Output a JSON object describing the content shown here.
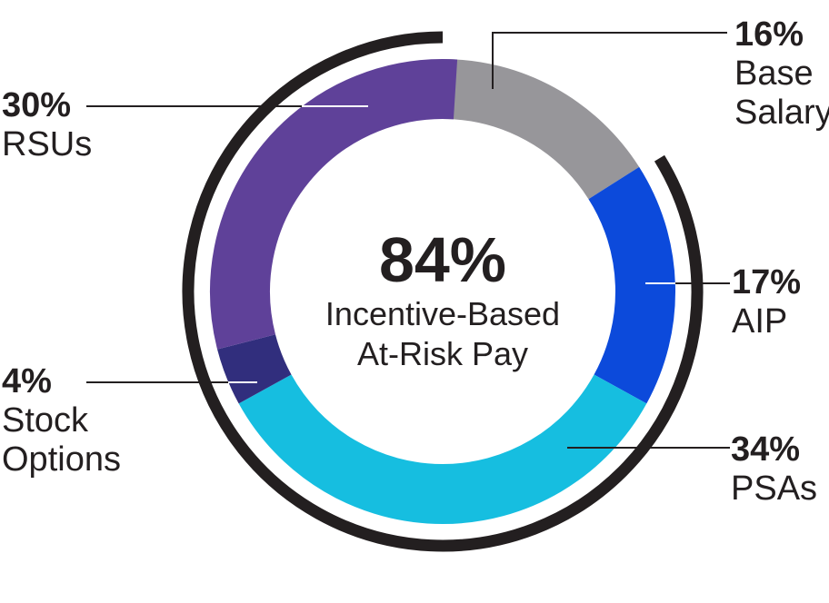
{
  "chart_data": {
    "type": "pie",
    "subtype": "donut",
    "title": "",
    "direction": "clockwise",
    "start_angle_deg": 0,
    "segments": [
      {
        "label": "Base Salary",
        "value_pct": 16,
        "color": "#97969A"
      },
      {
        "label": "AIP",
        "value_pct": 17,
        "color": "#0C4ADB"
      },
      {
        "label": "PSAs",
        "value_pct": 34,
        "color": "#16BEE0"
      },
      {
        "label": "Stock Options",
        "value_pct": 4,
        "color": "#312E7D"
      },
      {
        "label": "RSUs",
        "value_pct": 30,
        "color": "#5F4199"
      }
    ],
    "outer_arc": {
      "label": "Incentive-Based At-Risk Pay",
      "covers_pct": 84,
      "from_pct": 16,
      "to_pct": 100,
      "color": "#231F20"
    },
    "center_label": {
      "value": "84%",
      "line1": "Incentive-Based",
      "line2": "At-Risk Pay"
    }
  },
  "center": {
    "value": "84%",
    "line1": "Incentive-Based",
    "line2": "At-Risk Pay"
  },
  "callouts": {
    "base": {
      "value": "16%",
      "lines": [
        "Base",
        "Salary"
      ]
    },
    "aip": {
      "value": "17%",
      "lines": [
        "AIP"
      ]
    },
    "psas": {
      "value": "34%",
      "lines": [
        "PSAs"
      ]
    },
    "stock": {
      "value": "4%",
      "lines": [
        "Stock",
        "Options"
      ]
    },
    "rsus": {
      "value": "30%",
      "lines": [
        "RSUs"
      ]
    }
  },
  "colors": {
    "text": "#231F20",
    "outer_arc": "#231F20",
    "leader_dark": "#231F20",
    "leader_light": "#FFFFFF",
    "background": "#FFFFFF"
  }
}
